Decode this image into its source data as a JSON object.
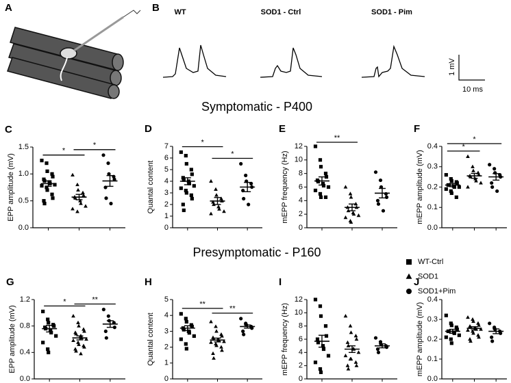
{
  "panel_labels": [
    "A",
    "B"
  ],
  "traces": [
    "WT",
    "SOD1 - Ctrl",
    "SOD1 - Pim"
  ],
  "scale_bar": {
    "y": "1 mV",
    "x": "10 ms"
  },
  "sections": [
    "Symptomatic - P400",
    "Presymptomatic - P160"
  ],
  "legend": {
    "names": [
      "WT-Ctrl",
      "SOD1",
      "SOD1+Pim"
    ],
    "markers": [
      "square",
      "triangle",
      "circle"
    ],
    "color": "#000000"
  },
  "chart_data": [
    {
      "type": "dot",
      "label": "C",
      "ylabel": "EPP amplitude (mV)",
      "ylim": [
        0,
        1.5
      ],
      "yticks": [
        {
          "value": 0,
          "label": "0.0"
        },
        0.5,
        {
          "value": 1,
          "label": "1.0"
        },
        1.5
      ],
      "series": [
        {
          "values": [
            1.25,
            1.2,
            1.05,
            1.0,
            0.95,
            0.9,
            0.87,
            0.85,
            0.82,
            0.8,
            0.78,
            0.75,
            0.7,
            0.62,
            0.55,
            0.5,
            0.45
          ],
          "mean": 0.82,
          "sem": 0.05
        },
        {
          "values": [
            0.98,
            0.8,
            0.7,
            0.65,
            0.6,
            0.57,
            0.55,
            0.5,
            0.45,
            0.4,
            0.35,
            0.3
          ],
          "mean": 0.57,
          "sem": 0.05
        },
        {
          "values": [
            1.35,
            1.2,
            1.0,
            0.95,
            0.9,
            0.75,
            0.55,
            0.45
          ],
          "mean": 0.87,
          "sem": 0.1
        }
      ],
      "annotations": [
        {
          "text": "*",
          "from": 0,
          "to": 1
        },
        {
          "text": "*",
          "from": 1,
          "to": 2
        }
      ]
    },
    {
      "type": "dot",
      "label": "D",
      "ylabel": "Quantal content",
      "ylim": [
        0,
        7
      ],
      "yticks": [
        0,
        1,
        2,
        3,
        4,
        5,
        6,
        7
      ],
      "series": [
        {
          "values": [
            6.5,
            6.2,
            5.5,
            5.0,
            4.6,
            4.3,
            4.1,
            4.0,
            3.8,
            3.6,
            3.4,
            3.2,
            3.0,
            2.8,
            2.5,
            2.0,
            1.5
          ],
          "mean": 4.0,
          "sem": 0.3
        },
        {
          "values": [
            4.0,
            3.3,
            2.8,
            2.5,
            2.3,
            2.2,
            2.0,
            1.8,
            1.6,
            1.4,
            1.2
          ],
          "mean": 2.3,
          "sem": 0.3
        },
        {
          "values": [
            5.5,
            4.5,
            4.0,
            3.8,
            3.5,
            3.2,
            2.5,
            2.0
          ],
          "mean": 3.5,
          "sem": 0.4
        }
      ],
      "annotations": [
        {
          "text": "*",
          "from": 0,
          "to": 1
        },
        {
          "text": "*",
          "from": 1,
          "to": 2
        }
      ]
    },
    {
      "type": "dot",
      "label": "E",
      "ylabel": "mEPP frequency (Hz)",
      "ylim": [
        0,
        12
      ],
      "yticks": [
        0,
        2,
        4,
        6,
        8,
        10,
        12
      ],
      "series": [
        {
          "values": [
            12,
            10,
            9,
            8,
            7.5,
            7,
            6.8,
            6.5,
            6.2,
            6,
            5.5,
            5,
            4.5,
            4.5
          ],
          "mean": 6.9,
          "sem": 0.6
        },
        {
          "values": [
            6,
            5,
            4.5,
            3.5,
            3,
            3,
            2.5,
            2.2,
            2,
            1.8,
            1.5,
            1,
            0.8
          ],
          "mean": 3.0,
          "sem": 0.5
        },
        {
          "values": [
            8.2,
            7,
            6,
            5,
            4.5,
            4,
            3.5,
            2.5
          ],
          "mean": 5.1,
          "sem": 0.7
        }
      ],
      "annotations": [
        {
          "text": "**",
          "from": 0,
          "to": 1
        }
      ]
    },
    {
      "type": "dot",
      "label": "F",
      "ylabel": "mEPP amplitude (mV)",
      "ylim": [
        0,
        0.4
      ],
      "yticks": [
        {
          "value": 0,
          "label": "0.0"
        },
        0.1,
        0.2,
        0.3,
        0.4
      ],
      "series": [
        {
          "values": [
            0.26,
            0.24,
            0.23,
            0.225,
            0.22,
            0.21,
            0.21,
            0.205,
            0.2,
            0.2,
            0.19,
            0.18,
            0.17,
            0.15
          ],
          "mean": 0.21,
          "sem": 0.008
        },
        {
          "values": [
            0.35,
            0.3,
            0.28,
            0.27,
            0.26,
            0.255,
            0.25,
            0.24,
            0.23,
            0.22,
            0.2
          ],
          "mean": 0.255,
          "sem": 0.012
        },
        {
          "values": [
            0.31,
            0.29,
            0.27,
            0.26,
            0.25,
            0.22,
            0.2,
            0.18
          ],
          "mean": 0.25,
          "sem": 0.016
        }
      ],
      "annotations": [
        {
          "text": "*",
          "from": 0,
          "to": 1
        },
        {
          "text": "*",
          "from": 0,
          "to": 2
        }
      ]
    },
    {
      "type": "dot",
      "label": "G",
      "ylabel": "EPP amplitude (mV)",
      "ylim": [
        0,
        1.2
      ],
      "yticks": [
        {
          "value": 0,
          "label": "0.0"
        },
        0.4,
        0.8,
        1.2
      ],
      "series": [
        {
          "values": [
            1.02,
            0.9,
            0.85,
            0.82,
            0.8,
            0.78,
            0.76,
            0.74,
            0.7,
            0.65,
            0.55,
            0.45,
            0.4
          ],
          "mean": 0.76,
          "sem": 0.05
        },
        {
          "values": [
            0.95,
            0.85,
            0.8,
            0.75,
            0.72,
            0.7,
            0.68,
            0.65,
            0.62,
            0.6,
            0.58,
            0.55,
            0.52,
            0.5,
            0.48,
            0.45,
            0.42,
            0.38
          ],
          "mean": 0.62,
          "sem": 0.03
        },
        {
          "values": [
            1.05,
            0.95,
            0.88,
            0.85,
            0.78,
            0.72,
            0.62
          ],
          "mean": 0.83,
          "sem": 0.05
        }
      ],
      "annotations": [
        {
          "text": "*",
          "from": 0,
          "to": 1
        },
        {
          "text": "**",
          "from": 1,
          "to": 2
        }
      ]
    },
    {
      "type": "dot",
      "label": "H",
      "ylabel": "Quantal content",
      "ylim": [
        0,
        5
      ],
      "yticks": [
        0,
        1,
        2,
        3,
        4,
        5
      ],
      "series": [
        {
          "values": [
            4.1,
            3.8,
            3.6,
            3.4,
            3.3,
            3.2,
            3.1,
            3.0,
            2.9,
            2.7,
            2.5,
            2.2,
            1.9
          ],
          "mean": 3.2,
          "sem": 0.15
        },
        {
          "values": [
            3.6,
            3.3,
            3.0,
            2.8,
            2.7,
            2.6,
            2.5,
            2.45,
            2.4,
            2.35,
            2.3,
            2.2,
            2.1,
            2.0,
            1.8,
            1.6,
            1.3
          ],
          "mean": 2.45,
          "sem": 0.12
        },
        {
          "values": [
            3.8,
            3.5,
            3.4,
            3.3,
            3.2,
            3.0,
            2.8
          ],
          "mean": 3.3,
          "sem": 0.1
        }
      ],
      "annotations": [
        {
          "text": "**",
          "from": 0,
          "to": 1
        },
        {
          "text": "**",
          "from": 1,
          "to": 2
        }
      ]
    },
    {
      "type": "dot",
      "label": "I",
      "ylabel": "mEPP frequency (Hz)",
      "ylim": [
        0,
        12
      ],
      "yticks": [
        0,
        2,
        4,
        6,
        8,
        10,
        12
      ],
      "series": [
        {
          "values": [
            12,
            11,
            9.5,
            8,
            6.5,
            6,
            5.5,
            5,
            4.5,
            3.5,
            2.5,
            1.5,
            1
          ],
          "mean": 5.7,
          "sem": 0.9
        },
        {
          "values": [
            9.5,
            8,
            7,
            6.5,
            6,
            5.5,
            5,
            4.5,
            4.5,
            4,
            3.5,
            3,
            3,
            2.5,
            2,
            2,
            1.5
          ],
          "mean": 4.5,
          "sem": 0.5
        },
        {
          "values": [
            6.2,
            5.6,
            5.2,
            5,
            4.8,
            4.5,
            4
          ],
          "mean": 5.0,
          "sem": 0.3
        }
      ],
      "annotations": []
    },
    {
      "type": "dot",
      "label": "J",
      "ylabel": "mEPP amplitude (mV)",
      "ylim": [
        0,
        0.4
      ],
      "yticks": [
        {
          "value": 0,
          "label": "0.0"
        },
        0.1,
        0.2,
        0.3,
        0.4
      ],
      "series": [
        {
          "values": [
            0.32,
            0.28,
            0.27,
            0.26,
            0.25,
            0.24,
            0.24,
            0.235,
            0.23,
            0.22,
            0.21,
            0.2,
            0.18
          ],
          "mean": 0.24,
          "sem": 0.01
        },
        {
          "values": [
            0.31,
            0.3,
            0.29,
            0.28,
            0.27,
            0.265,
            0.26,
            0.255,
            0.25,
            0.25,
            0.245,
            0.24,
            0.23,
            0.22,
            0.21,
            0.2,
            0.19
          ],
          "mean": 0.255,
          "sem": 0.008
        },
        {
          "values": [
            0.28,
            0.26,
            0.25,
            0.24,
            0.23,
            0.21,
            0.19
          ],
          "mean": 0.24,
          "sem": 0.012
        }
      ],
      "annotations": []
    }
  ]
}
